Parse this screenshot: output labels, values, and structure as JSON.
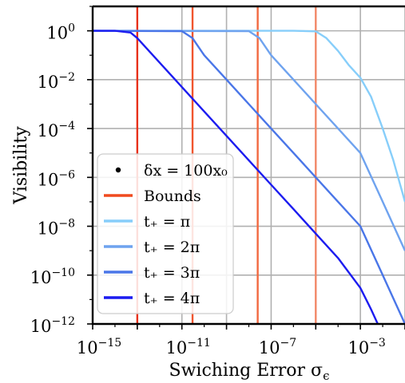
{
  "chart_data": {
    "type": "line",
    "title": "",
    "xlabel": "Swiching Error σ",
    "xlabel_sub": "ϵ",
    "ylabel": "Visibility",
    "xscale": "log",
    "yscale": "log",
    "xlim": [
      1e-15,
      0.1
    ],
    "ylim": [
      1e-12,
      10.0
    ],
    "grid": true,
    "x_ticks": [
      {
        "base": "10",
        "exp": "−15",
        "value": 1e-15
      },
      {
        "base": "10",
        "exp": "−11",
        "value": 1e-11
      },
      {
        "base": "10",
        "exp": "−7",
        "value": 1e-07
      },
      {
        "base": "10",
        "exp": "−3",
        "value": 0.001
      }
    ],
    "y_ticks": [
      {
        "base": "10",
        "exp": "0",
        "value": 1
      },
      {
        "base": "10",
        "exp": "−2",
        "value": 0.01
      },
      {
        "base": "10",
        "exp": "−4",
        "value": 0.0001
      },
      {
        "base": "10",
        "exp": "−6",
        "value": 1e-06
      },
      {
        "base": "10",
        "exp": "−8",
        "value": 1e-08
      },
      {
        "base": "10",
        "exp": "−10",
        "value": 1e-10
      },
      {
        "base": "10",
        "exp": "−12",
        "value": 1e-12
      }
    ],
    "bounds": {
      "name": "Bounds",
      "color": "#f04a1e",
      "x": [
        1e-13,
        3e-11,
        2.5e-08,
        1e-05
      ],
      "colors": [
        "#e8311a",
        "#f0552e",
        "#f2683f",
        "#f28868"
      ]
    },
    "series": [
      {
        "name": "t₊ = π",
        "color": "#87cefa",
        "x": [
          1e-15,
          1e-06,
          1e-05,
          3e-05,
          0.0001,
          0.0003,
          0.001,
          0.003,
          0.01,
          0.03,
          0.1
        ],
        "y": [
          1,
          1,
          0.95,
          0.5,
          0.15,
          0.04,
          0.012,
          0.002,
          0.0001,
          5e-06,
          1e-07
        ]
      },
      {
        "name": "t₊ = 2π",
        "color": "#6fa3ef",
        "x": [
          1e-15,
          1e-08,
          3e-08,
          1e-07,
          1e-06,
          1e-05,
          0.0001,
          0.001,
          0.01,
          0.1
        ],
        "y": [
          1,
          0.97,
          0.5,
          0.1,
          0.01,
          0.001,
          0.0001,
          1e-05,
          1e-07,
          1e-09
        ]
      },
      {
        "name": "t₊ = 3π",
        "color": "#4a76e8",
        "x": [
          1e-15,
          1e-11,
          3e-11,
          1e-10,
          1e-09,
          1e-08,
          1e-07,
          1e-06,
          1e-05,
          0.0001,
          0.001,
          0.01,
          0.1
        ],
        "y": [
          1,
          0.97,
          0.5,
          0.1,
          0.01,
          0.001,
          0.0001,
          1e-05,
          1e-06,
          1e-07,
          1e-08,
          1e-10,
          1e-12
        ]
      },
      {
        "name": "t₊ = 4π",
        "color": "#1c1cf0",
        "x": [
          1e-15,
          1e-14,
          5e-14,
          1e-13,
          1e-12,
          1e-11,
          1e-10,
          1e-09,
          1e-08,
          1e-07,
          1e-06,
          1e-05,
          0.0001,
          0.001,
          0.003,
          0.006
        ],
        "y": [
          1,
          1,
          0.85,
          0.5,
          0.05,
          0.005,
          0.0005,
          5e-05,
          5e-06,
          5e-07,
          5e-08,
          5e-09,
          5e-10,
          3e-11,
          4e-12,
          1e-12
        ]
      }
    ],
    "legend": {
      "placement": "lower-left",
      "entries": [
        {
          "kind": "dot",
          "label": "δx = 100x₀",
          "color": "#000000"
        },
        {
          "kind": "line",
          "label": "Bounds",
          "color": "#f04a1e"
        },
        {
          "kind": "line",
          "label": "t₊ = π",
          "color": "#87cefa"
        },
        {
          "kind": "line",
          "label": "t₊ = 2π",
          "color": "#6fa3ef"
        },
        {
          "kind": "line",
          "label": "t₊ = 3π",
          "color": "#4a76e8"
        },
        {
          "kind": "line",
          "label": "t₊ = 4π",
          "color": "#1c1cf0"
        }
      ]
    }
  }
}
